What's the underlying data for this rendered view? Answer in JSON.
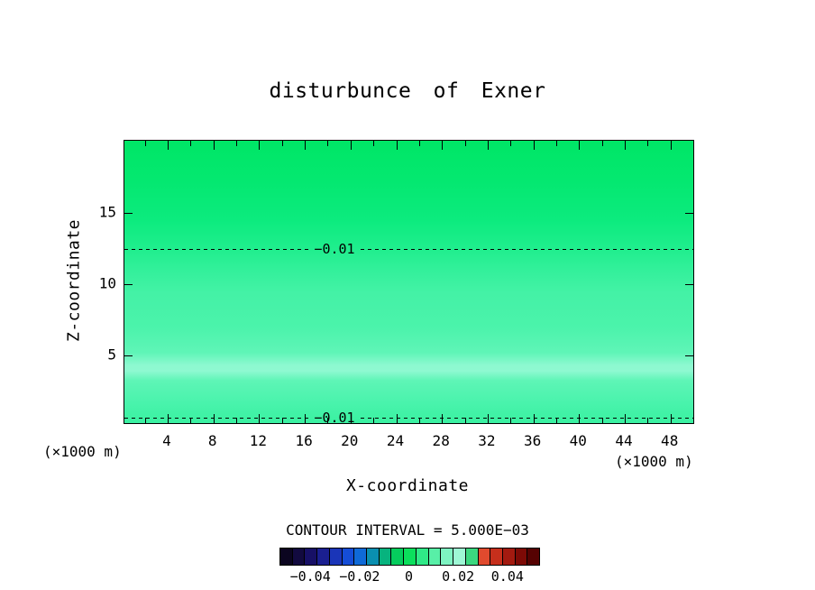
{
  "title": "disturbunce of Exner",
  "axes": {
    "x_label": "X-coordinate",
    "y_label": "Z-coordinate",
    "unit_left": "(×1000 m)",
    "unit_right": "(×1000 m)",
    "x_ticks": [
      {
        "label": "4",
        "v": 4
      },
      {
        "label": "8",
        "v": 8
      },
      {
        "label": "12",
        "v": 12
      },
      {
        "label": "16",
        "v": 16
      },
      {
        "label": "20",
        "v": 20
      },
      {
        "label": "24",
        "v": 24
      },
      {
        "label": "28",
        "v": 28
      },
      {
        "label": "32",
        "v": 32
      },
      {
        "label": "36",
        "v": 36
      },
      {
        "label": "40",
        "v": 40
      },
      {
        "label": "44",
        "v": 44
      },
      {
        "label": "48",
        "v": 48
      }
    ],
    "y_ticks": [
      {
        "label": "15",
        "z": 15
      },
      {
        "label": "10",
        "z": 10
      },
      {
        "label": "5",
        "z": 5
      }
    ],
    "x_minor_step": 2
  },
  "contours": {
    "lines": [
      {
        "label": "−0.01",
        "z": 12.5
      },
      {
        "label": "−0.01",
        "z": 0.65
      }
    ]
  },
  "footer": {
    "contour_interval": "CONTOUR INTERVAL = 5.000E−03"
  },
  "colorbar": {
    "min": -0.0525,
    "max": 0.0525,
    "colors": [
      "#0b0520",
      "#120a3f",
      "#171066",
      "#1a1f90",
      "#1a35b8",
      "#154dd6",
      "#0f6ad8",
      "#0a8fb0",
      "#07b37e",
      "#05cd5d",
      "#0bdf5c",
      "#2fe987",
      "#58efa7",
      "#7ef4c2",
      "#9ef8d5",
      "#3bd87f",
      "#e04a2e",
      "#c62f1c",
      "#a31a10",
      "#7d0a06",
      "#560202"
    ],
    "ticks": [
      {
        "label": "−0.04",
        "value": -0.04
      },
      {
        "label": "−0.02",
        "value": -0.02
      },
      {
        "label": "0",
        "value": 0
      },
      {
        "label": "0.02",
        "value": 0.02
      },
      {
        "label": "0.04",
        "value": 0.04
      }
    ]
  },
  "chart_data": {
    "type": "heatmap",
    "title": "disturbunce of Exner",
    "xlabel": "X-coordinate",
    "ylabel": "Z-coordinate",
    "axis_units": "(×1000 m)",
    "x_range": [
      0,
      50
    ],
    "z_range": [
      0,
      20
    ],
    "contour_interval": 0.005,
    "contour_lines": [
      {
        "value": -0.01,
        "z": 12.5,
        "style": "dashed"
      },
      {
        "value": -0.01,
        "z": 0.65,
        "style": "dashed"
      }
    ],
    "field_description": "Horizontally uniform shaded field; value varies with height only (estimated from fill colors)",
    "z_profile": {
      "z": [
        0,
        0.65,
        2,
        3.5,
        5,
        8,
        10,
        12.5,
        15,
        18,
        20
      ],
      "value": [
        -0.011,
        -0.01,
        -0.008,
        -0.005,
        -0.007,
        -0.008,
        -0.009,
        -0.01,
        -0.011,
        -0.012,
        -0.012
      ]
    },
    "colorbar_range": [
      -0.0525,
      0.0525
    ],
    "colorbar_tick_labels": [
      "−0.04",
      "−0.02",
      "0",
      "0.02",
      "0.04"
    ],
    "legend_position": "bottom",
    "grid": false
  }
}
